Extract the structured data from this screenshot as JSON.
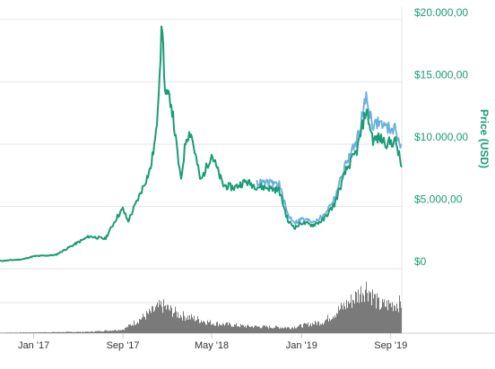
{
  "chart_data": {
    "type": "line",
    "ylabel": "Price (USD)",
    "y_ticks": [
      "$0",
      "$5.000,00",
      "$10.000,00",
      "$15.000,00",
      "$20.000,00"
    ],
    "y_tick_values": [
      0,
      5000,
      10000,
      15000,
      20000
    ],
    "ylim": [
      0,
      21000
    ],
    "x_ticks": [
      "Jan '17",
      "Sep '17",
      "May '18",
      "Jan '19",
      "Sep '19"
    ],
    "x_tick_dates": [
      "2017-01-01",
      "2017-09-01",
      "2018-05-01",
      "2019-01-01",
      "2019-09-01"
    ],
    "xlim": [
      "2016-10-01",
      "2019-10-01"
    ],
    "grid": true,
    "colors": {
      "price_primary": "#1a9c76",
      "price_secondary": "#6ab0de",
      "volume": "#7a7a7a",
      "grid": "#e6e6e6",
      "axis_text": "#1a9c76"
    },
    "series": [
      {
        "x": [
          "2016-10-01",
          "2016-12-01",
          "2017-01-01",
          "2017-03-01",
          "2017-05-01",
          "2017-06-01",
          "2017-07-15",
          "2017-08-15",
          "2017-09-01",
          "2017-09-15",
          "2017-10-15",
          "2017-11-15",
          "2017-12-01",
          "2017-12-17",
          "2017-12-25",
          "2018-01-10",
          "2018-02-06",
          "2018-02-20",
          "2018-03-05",
          "2018-04-01",
          "2018-05-01",
          "2018-06-01",
          "2018-07-01",
          "2018-08-01",
          "2018-09-01",
          "2018-10-01",
          "2018-11-01",
          "2018-11-25",
          "2018-12-15",
          "2019-01-01",
          "2019-02-01",
          "2019-03-01",
          "2019-04-01",
          "2019-05-01",
          "2019-06-01",
          "2019-06-26",
          "2019-07-15",
          "2019-08-01",
          "2019-08-20",
          "2019-09-15",
          "2019-10-01"
        ],
        "values": [
          620,
          750,
          1000,
          1100,
          2100,
          2600,
          2400,
          4100,
          4800,
          3800,
          5800,
          8000,
          10900,
          19800,
          14000,
          13500,
          7000,
          10500,
          11000,
          7000,
          9200,
          6700,
          6500,
          7000,
          6600,
          6500,
          6300,
          3800,
          3300,
          3700,
          3500,
          3900,
          5200,
          7800,
          9500,
          12800,
          10300,
          10500,
          10100,
          10200,
          8100
        ]
      },
      {
        "x": [
          "2018-09-01",
          "2018-10-01",
          "2018-11-01",
          "2018-11-25",
          "2018-12-15",
          "2019-01-01",
          "2019-02-01",
          "2019-03-01",
          "2019-04-01",
          "2019-05-01",
          "2019-06-01",
          "2019-06-26",
          "2019-07-15",
          "2019-08-01",
          "2019-08-20",
          "2019-09-15",
          "2019-10-01"
        ],
        "values": [
          6900,
          6900,
          6800,
          4300,
          3700,
          4000,
          3800,
          4200,
          5700,
          8400,
          10300,
          13800,
          11500,
          11800,
          11300,
          11200,
          9600
        ]
      }
    ],
    "volume": {
      "x": [
        "2016-10-01",
        "2017-06-01",
        "2017-09-01",
        "2017-12-15",
        "2018-02-01",
        "2018-05-01",
        "2018-08-01",
        "2018-12-01",
        "2019-03-01",
        "2019-05-15",
        "2019-06-26",
        "2019-08-01",
        "2019-10-01"
      ],
      "values": [
        1,
        3,
        8,
        60,
        40,
        22,
        15,
        12,
        25,
        70,
        100,
        60,
        65
      ]
    }
  }
}
